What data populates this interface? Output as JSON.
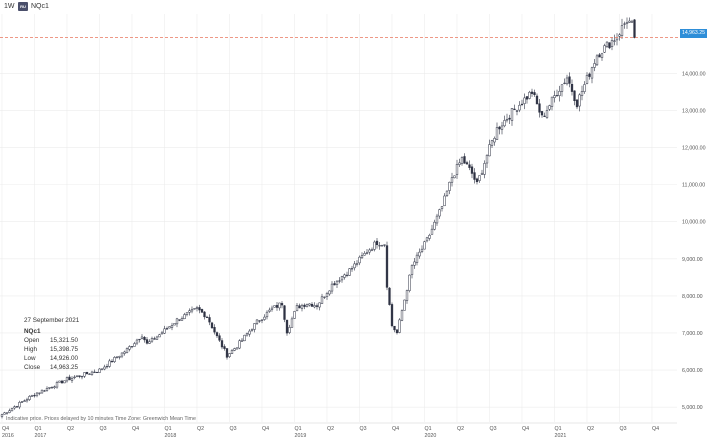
{
  "toolbar": {
    "interval": "1W",
    "symbol_badge": "RU",
    "symbol": "NQc1"
  },
  "current_price_label": "14,963.25",
  "info": {
    "date": "27 September 2021",
    "symbol": "NQc1",
    "rows": [
      {
        "key": "Open",
        "value": "15,321.50"
      },
      {
        "key": "High",
        "value": "15,398.75"
      },
      {
        "key": "Low",
        "value": "14,926.00"
      },
      {
        "key": "Close",
        "value": "14,963.25"
      }
    ]
  },
  "footer_note": "Indicative price. Prices delayed by 10 minutes  Time Zone: Greenwich Mean Time",
  "colors": {
    "up": "#2d3142",
    "down": "#2d3142",
    "grid": "#ececec",
    "price_line": "#e8775e",
    "badge": "#2e8ed8"
  },
  "chart_data": {
    "type": "candlestick",
    "interval": "weekly",
    "ylim": [
      4600,
      15600
    ],
    "y_ticks": [
      5000,
      6000,
      7000,
      8000,
      9000,
      10000,
      11000,
      12000,
      13000,
      14000
    ],
    "y_tick_labels": [
      "5,000.00",
      "6,000.00",
      "7,000.00",
      "8,000.00",
      "9,000.00",
      "10,000.00",
      "11,000.00",
      "12,000.00",
      "13,000.00",
      "14,000.00"
    ],
    "current_price": 14963.25,
    "quarter_labels": [
      "Q4",
      "Q1",
      "Q2",
      "Q3",
      "Q4",
      "Q1",
      "Q2",
      "Q3",
      "Q4",
      "Q1",
      "Q2",
      "Q3",
      "Q4",
      "Q1",
      "Q2",
      "Q3",
      "Q4",
      "Q1",
      "Q2",
      "Q3",
      "Q4"
    ],
    "year_labels": [
      {
        "label": "2016",
        "quarter_index": 0
      },
      {
        "label": "2017",
        "quarter_index": 1
      },
      {
        "label": "2018",
        "quarter_index": 5
      },
      {
        "label": "2019",
        "quarter_index": 9
      },
      {
        "label": "2020",
        "quarter_index": 13
      },
      {
        "label": "2021",
        "quarter_index": 17
      }
    ],
    "anchors": [
      [
        0,
        4800
      ],
      [
        13,
        5350
      ],
      [
        26,
        5750
      ],
      [
        39,
        6000
      ],
      [
        50,
        6550
      ],
      [
        56,
        6950
      ],
      [
        58,
        6700
      ],
      [
        62,
        6900
      ],
      [
        70,
        7350
      ],
      [
        78,
        7650
      ],
      [
        82,
        7450
      ],
      [
        86,
        6900
      ],
      [
        90,
        6400
      ],
      [
        94,
        6650
      ],
      [
        102,
        7300
      ],
      [
        108,
        7650
      ],
      [
        112,
        7800
      ],
      [
        114,
        7050
      ],
      [
        118,
        7700
      ],
      [
        122,
        7800
      ],
      [
        126,
        7750
      ],
      [
        132,
        8300
      ],
      [
        140,
        8750
      ],
      [
        146,
        9200
      ],
      [
        150,
        9450
      ],
      [
        153,
        9400
      ],
      [
        154,
        8300
      ],
      [
        156,
        7200
      ],
      [
        158,
        7000
      ],
      [
        160,
        7600
      ],
      [
        164,
        8800
      ],
      [
        170,
        9500
      ],
      [
        176,
        10400
      ],
      [
        180,
        11200
      ],
      [
        184,
        11700
      ],
      [
        188,
        11300
      ],
      [
        190,
        11000
      ],
      [
        194,
        11800
      ],
      [
        198,
        12500
      ],
      [
        206,
        13100
      ],
      [
        212,
        13500
      ],
      [
        216,
        12800
      ],
      [
        222,
        13500
      ],
      [
        226,
        13900
      ],
      [
        230,
        13200
      ],
      [
        238,
        14500
      ],
      [
        246,
        15000
      ],
      [
        250,
        15450
      ],
      [
        252,
        15300
      ],
      [
        253,
        14963
      ]
    ]
  }
}
